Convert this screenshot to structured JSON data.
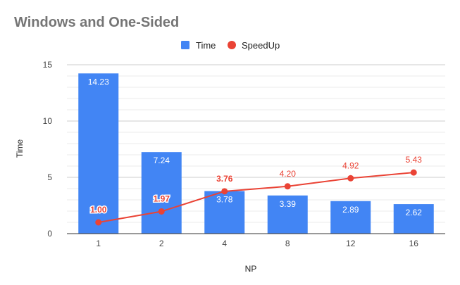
{
  "chart_data": {
    "type": "bar",
    "title": "Windows and One-Sided",
    "xlabel": "NP",
    "ylabel": "Time",
    "categories": [
      "1",
      "2",
      "4",
      "8",
      "12",
      "16"
    ],
    "ylim": [
      0,
      15
    ],
    "yticks": [
      0,
      5,
      10,
      15
    ],
    "grid": true,
    "legend_position": "top",
    "series": [
      {
        "name": "Time",
        "type": "bar",
        "color": "#4285f4",
        "values": [
          14.23,
          7.24,
          3.78,
          3.39,
          2.89,
          2.62
        ],
        "labels": [
          "14.23",
          "7.24",
          "3.78",
          "3.39",
          "2.89",
          "2.62"
        ]
      },
      {
        "name": "SpeedUp",
        "type": "line",
        "color": "#ea4335",
        "values": [
          1.0,
          1.97,
          3.76,
          4.2,
          4.92,
          5.43
        ],
        "labels": [
          "1.00",
          "1.97",
          "3.76",
          "4.20",
          "4.92",
          "5.43"
        ]
      }
    ]
  }
}
